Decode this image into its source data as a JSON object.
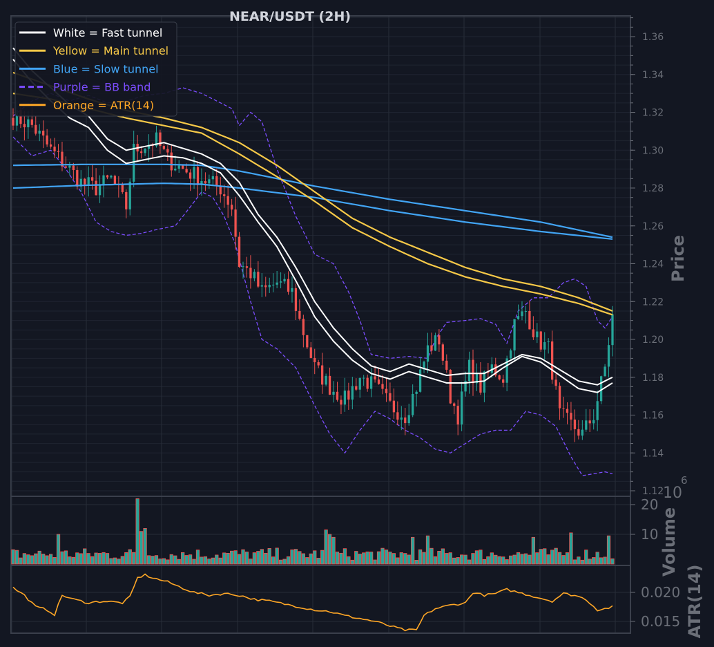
{
  "chart_data": [
    {
      "type": "candlestick",
      "title": "NEAR/USDT (2H)",
      "ylabel": "Price",
      "ylim": [
        1.12,
        1.37
      ],
      "yticks": [
        1.12,
        1.14,
        1.16,
        1.18,
        1.2,
        1.22,
        1.24,
        1.26,
        1.28,
        1.3,
        1.32,
        1.34,
        1.36
      ],
      "grid": true,
      "legend_position": "top-left",
      "legend": [
        {
          "label": "White = Fast tunnel",
          "color": "#ffffff",
          "style": "solid"
        },
        {
          "label": "Yellow = Main tunnel",
          "color": "#f7c948",
          "style": "solid"
        },
        {
          "label": "Blue = Slow tunnel",
          "color": "#42a5f5",
          "style": "solid"
        },
        {
          "label": "Purple = BB band",
          "color": "#7c4dff",
          "style": "dashed"
        },
        {
          "label": "Orange = ATR(14)",
          "color": "#ffa726",
          "style": "solid"
        }
      ],
      "candle_colors": {
        "up": "#26a69a",
        "down": "#ef5350"
      },
      "bars": 160,
      "close_anchors": [
        [
          0,
          1.318
        ],
        [
          5,
          1.313
        ],
        [
          10,
          1.3
        ],
        [
          14,
          1.292
        ],
        [
          18,
          1.283
        ],
        [
          22,
          1.28
        ],
        [
          26,
          1.285
        ],
        [
          30,
          1.27
        ],
        [
          32,
          1.3
        ],
        [
          34,
          1.302
        ],
        [
          38,
          1.305
        ],
        [
          41,
          1.295
        ],
        [
          45,
          1.29
        ],
        [
          50,
          1.285
        ],
        [
          55,
          1.28
        ],
        [
          58,
          1.27
        ],
        [
          60,
          1.24
        ],
        [
          63,
          1.235
        ],
        [
          66,
          1.225
        ],
        [
          70,
          1.23
        ],
        [
          74,
          1.225
        ],
        [
          76,
          1.21
        ],
        [
          80,
          1.185
        ],
        [
          84,
          1.175
        ],
        [
          88,
          1.168
        ],
        [
          92,
          1.18
        ],
        [
          96,
          1.175
        ],
        [
          100,
          1.165
        ],
        [
          104,
          1.16
        ],
        [
          107,
          1.175
        ],
        [
          110,
          1.195
        ],
        [
          113,
          1.2
        ],
        [
          116,
          1.17
        ],
        [
          118,
          1.16
        ],
        [
          121,
          1.185
        ],
        [
          124,
          1.175
        ],
        [
          127,
          1.185
        ],
        [
          130,
          1.18
        ],
        [
          133,
          1.208
        ],
        [
          136,
          1.215
        ],
        [
          139,
          1.2
        ],
        [
          142,
          1.195
        ],
        [
          145,
          1.16
        ],
        [
          148,
          1.155
        ],
        [
          151,
          1.15
        ],
        [
          154,
          1.16
        ],
        [
          157,
          1.185
        ],
        [
          159,
          1.212
        ]
      ],
      "fast_tunnel": [
        [
          [
            0,
            1.354
          ],
          [
            5,
            1.342
          ],
          [
            10,
            1.333
          ],
          [
            15,
            1.324
          ],
          [
            20,
            1.318
          ],
          [
            25,
            1.306
          ],
          [
            30,
            1.3
          ],
          [
            35,
            1.302
          ],
          [
            40,
            1.304
          ],
          [
            45,
            1.301
          ],
          [
            50,
            1.298
          ],
          [
            55,
            1.293
          ],
          [
            60,
            1.283
          ],
          [
            65,
            1.266
          ],
          [
            70,
            1.254
          ],
          [
            75,
            1.238
          ],
          [
            80,
            1.22
          ],
          [
            85,
            1.206
          ],
          [
            90,
            1.195
          ],
          [
            95,
            1.186
          ],
          [
            100,
            1.183
          ],
          [
            105,
            1.187
          ],
          [
            110,
            1.184
          ],
          [
            115,
            1.181
          ],
          [
            120,
            1.182
          ],
          [
            125,
            1.182
          ],
          [
            130,
            1.187
          ],
          [
            135,
            1.192
          ],
          [
            140,
            1.19
          ],
          [
            145,
            1.184
          ],
          [
            150,
            1.178
          ],
          [
            155,
            1.176
          ],
          [
            159,
            1.18
          ]
        ],
        [
          [
            0,
            1.348
          ],
          [
            5,
            1.336
          ],
          [
            10,
            1.326
          ],
          [
            15,
            1.317
          ],
          [
            20,
            1.312
          ],
          [
            25,
            1.3
          ],
          [
            30,
            1.293
          ],
          [
            35,
            1.295
          ],
          [
            40,
            1.297
          ],
          [
            45,
            1.296
          ],
          [
            50,
            1.293
          ],
          [
            55,
            1.288
          ],
          [
            60,
            1.276
          ],
          [
            65,
            1.262
          ],
          [
            70,
            1.249
          ],
          [
            75,
            1.231
          ],
          [
            80,
            1.212
          ],
          [
            85,
            1.199
          ],
          [
            90,
            1.189
          ],
          [
            95,
            1.182
          ],
          [
            100,
            1.179
          ],
          [
            105,
            1.183
          ],
          [
            110,
            1.18
          ],
          [
            115,
            1.177
          ],
          [
            120,
            1.177
          ],
          [
            125,
            1.178
          ],
          [
            130,
            1.185
          ],
          [
            135,
            1.191
          ],
          [
            140,
            1.188
          ],
          [
            145,
            1.181
          ],
          [
            150,
            1.174
          ],
          [
            155,
            1.172
          ],
          [
            159,
            1.177
          ]
        ]
      ],
      "main_tunnel": [
        [
          [
            0,
            1.341
          ],
          [
            10,
            1.334
          ],
          [
            20,
            1.327
          ],
          [
            30,
            1.321
          ],
          [
            40,
            1.317
          ],
          [
            50,
            1.312
          ],
          [
            60,
            1.304
          ],
          [
            70,
            1.292
          ],
          [
            80,
            1.278
          ],
          [
            90,
            1.264
          ],
          [
            100,
            1.254
          ],
          [
            110,
            1.246
          ],
          [
            120,
            1.238
          ],
          [
            130,
            1.232
          ],
          [
            140,
            1.228
          ],
          [
            150,
            1.222
          ],
          [
            159,
            1.215
          ]
        ],
        [
          [
            0,
            1.33
          ],
          [
            10,
            1.327
          ],
          [
            20,
            1.322
          ],
          [
            30,
            1.317
          ],
          [
            40,
            1.313
          ],
          [
            50,
            1.309
          ],
          [
            60,
            1.298
          ],
          [
            70,
            1.286
          ],
          [
            80,
            1.273
          ],
          [
            90,
            1.259
          ],
          [
            100,
            1.249
          ],
          [
            110,
            1.24
          ],
          [
            120,
            1.233
          ],
          [
            130,
            1.228
          ],
          [
            140,
            1.224
          ],
          [
            150,
            1.219
          ],
          [
            159,
            1.213
          ]
        ]
      ],
      "slow_tunnel": [
        [
          [
            0,
            1.292
          ],
          [
            20,
            1.2925
          ],
          [
            40,
            1.2925
          ],
          [
            50,
            1.292
          ],
          [
            60,
            1.289
          ],
          [
            80,
            1.281
          ],
          [
            100,
            1.274
          ],
          [
            120,
            1.268
          ],
          [
            140,
            1.262
          ],
          [
            159,
            1.254
          ]
        ],
        [
          [
            0,
            1.28
          ],
          [
            20,
            1.2815
          ],
          [
            40,
            1.2825
          ],
          [
            50,
            1.282
          ],
          [
            60,
            1.28
          ],
          [
            80,
            1.275
          ],
          [
            100,
            1.268
          ],
          [
            120,
            1.262
          ],
          [
            140,
            1.257
          ],
          [
            159,
            1.253
          ]
        ]
      ],
      "bb_upper": [
        [
          0,
          1.318
        ],
        [
          5,
          1.326
        ],
        [
          10,
          1.33
        ],
        [
          15,
          1.326
        ],
        [
          20,
          1.329
        ],
        [
          25,
          1.325
        ],
        [
          30,
          1.326
        ],
        [
          35,
          1.329
        ],
        [
          40,
          1.33
        ],
        [
          45,
          1.333
        ],
        [
          50,
          1.33
        ],
        [
          55,
          1.325
        ],
        [
          58,
          1.322
        ],
        [
          60,
          1.313
        ],
        [
          63,
          1.32
        ],
        [
          66,
          1.315
        ],
        [
          70,
          1.29
        ],
        [
          75,
          1.265
        ],
        [
          80,
          1.245
        ],
        [
          85,
          1.24
        ],
        [
          89,
          1.225
        ],
        [
          92,
          1.21
        ],
        [
          95,
          1.192
        ],
        [
          100,
          1.19
        ],
        [
          105,
          1.191
        ],
        [
          110,
          1.19
        ],
        [
          112,
          1.2
        ],
        [
          115,
          1.209
        ],
        [
          120,
          1.21
        ],
        [
          124,
          1.211
        ],
        [
          128,
          1.208
        ],
        [
          131,
          1.198
        ],
        [
          134,
          1.215
        ],
        [
          138,
          1.222
        ],
        [
          142,
          1.222
        ],
        [
          146,
          1.23
        ],
        [
          149,
          1.232
        ],
        [
          152,
          1.228
        ],
        [
          155,
          1.21
        ],
        [
          157,
          1.206
        ],
        [
          159,
          1.212
        ]
      ],
      "bb_lower": [
        [
          0,
          1.307
        ],
        [
          5,
          1.297
        ],
        [
          10,
          1.3
        ],
        [
          14,
          1.29
        ],
        [
          18,
          1.278
        ],
        [
          22,
          1.262
        ],
        [
          26,
          1.257
        ],
        [
          30,
          1.255
        ],
        [
          34,
          1.256
        ],
        [
          38,
          1.258
        ],
        [
          43,
          1.26
        ],
        [
          47,
          1.27
        ],
        [
          50,
          1.278
        ],
        [
          53,
          1.275
        ],
        [
          56,
          1.265
        ],
        [
          59,
          1.25
        ],
        [
          63,
          1.22
        ],
        [
          66,
          1.2
        ],
        [
          70,
          1.195
        ],
        [
          75,
          1.185
        ],
        [
          80,
          1.165
        ],
        [
          84,
          1.15
        ],
        [
          88,
          1.14
        ],
        [
          92,
          1.152
        ],
        [
          96,
          1.162
        ],
        [
          100,
          1.158
        ],
        [
          104,
          1.152
        ],
        [
          108,
          1.148
        ],
        [
          112,
          1.142
        ],
        [
          116,
          1.14
        ],
        [
          120,
          1.145
        ],
        [
          124,
          1.15
        ],
        [
          128,
          1.152
        ],
        [
          132,
          1.152
        ],
        [
          136,
          1.162
        ],
        [
          140,
          1.16
        ],
        [
          144,
          1.154
        ],
        [
          148,
          1.138
        ],
        [
          151,
          1.128
        ],
        [
          154,
          1.129
        ],
        [
          157,
          1.13
        ],
        [
          159,
          1.129
        ]
      ]
    },
    {
      "type": "bar",
      "ylabel": "Volume",
      "scale_label": "10",
      "scale_exponent": "6",
      "ylim": [
        0,
        25
      ],
      "yticks": [
        10,
        20
      ],
      "bar_color": "#26a69a",
      "bar_edge_color": "#ef5350",
      "spike_bars": [
        [
          33,
          22
        ],
        [
          35,
          12
        ],
        [
          34,
          11
        ],
        [
          12,
          10
        ],
        [
          83,
          11.5
        ],
        [
          84,
          10
        ],
        [
          85,
          9
        ],
        [
          110,
          9.5
        ],
        [
          148,
          10.5
        ],
        [
          158,
          9.5
        ],
        [
          138,
          9
        ],
        [
          106,
          9
        ]
      ]
    },
    {
      "type": "line",
      "ylabel": "ATR(14)",
      "ylim": [
        0.0133,
        0.0241
      ],
      "yticks": [
        0.015,
        0.02
      ],
      "ytick_labels": [
        "0.015",
        "0.020"
      ],
      "color": "#ffa726",
      "values": [
        [
          0,
          0.0208
        ],
        [
          3,
          0.0195
        ],
        [
          6,
          0.0175
        ],
        [
          9,
          0.017
        ],
        [
          11,
          0.0162
        ],
        [
          13,
          0.0195
        ],
        [
          16,
          0.0188
        ],
        [
          20,
          0.0182
        ],
        [
          24,
          0.0185
        ],
        [
          29,
          0.0182
        ],
        [
          31,
          0.0192
        ],
        [
          33,
          0.0225
        ],
        [
          35,
          0.023
        ],
        [
          37,
          0.0225
        ],
        [
          41,
          0.0218
        ],
        [
          44,
          0.021
        ],
        [
          48,
          0.02
        ],
        [
          52,
          0.0195
        ],
        [
          56,
          0.0198
        ],
        [
          60,
          0.0195
        ],
        [
          64,
          0.0188
        ],
        [
          68,
          0.0185
        ],
        [
          72,
          0.018
        ],
        [
          76,
          0.0175
        ],
        [
          80,
          0.017
        ],
        [
          84,
          0.0167
        ],
        [
          88,
          0.016
        ],
        [
          92,
          0.0155
        ],
        [
          96,
          0.015
        ],
        [
          100,
          0.0142
        ],
        [
          104,
          0.0135
        ],
        [
          107,
          0.0135
        ],
        [
          109,
          0.016
        ],
        [
          112,
          0.0172
        ],
        [
          116,
          0.0178
        ],
        [
          120,
          0.0182
        ],
        [
          122,
          0.02
        ],
        [
          125,
          0.0195
        ],
        [
          128,
          0.0198
        ],
        [
          131,
          0.0205
        ],
        [
          134,
          0.02
        ],
        [
          137,
          0.0195
        ],
        [
          140,
          0.019
        ],
        [
          143,
          0.0185
        ],
        [
          146,
          0.0198
        ],
        [
          149,
          0.0195
        ],
        [
          152,
          0.0188
        ],
        [
          155,
          0.017
        ],
        [
          157,
          0.0172
        ],
        [
          159,
          0.0175
        ]
      ]
    }
  ]
}
